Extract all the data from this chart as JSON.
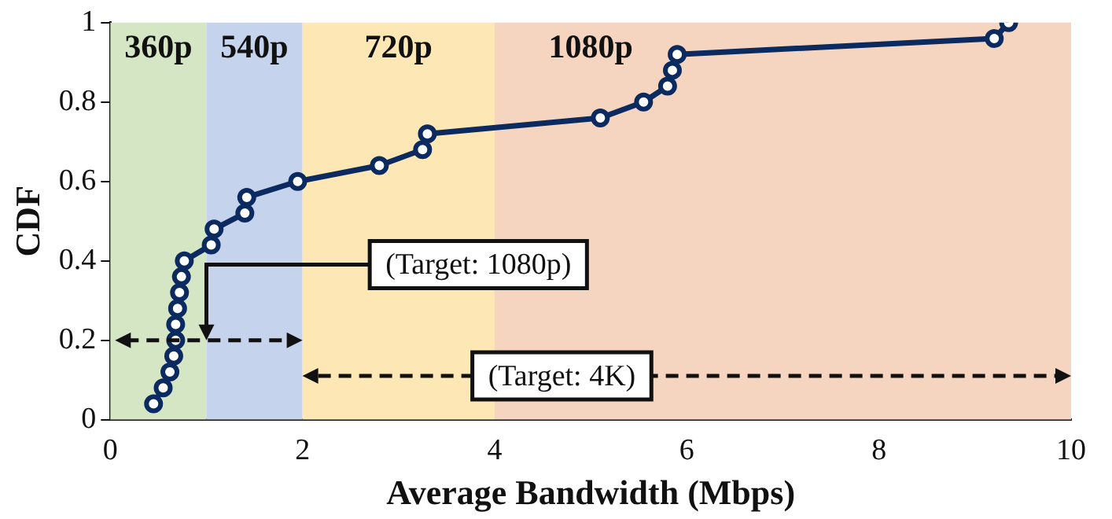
{
  "chart_data": {
    "type": "line",
    "xlabel": "Average Bandwidth (Mbps)",
    "ylabel": "CDF",
    "x": [
      0.45,
      0.55,
      0.62,
      0.66,
      0.68,
      0.68,
      0.7,
      0.72,
      0.74,
      0.77,
      1.05,
      1.08,
      1.4,
      1.42,
      1.95,
      2.8,
      3.25,
      3.3,
      5.1,
      5.55,
      5.8,
      5.85,
      5.9,
      9.2,
      9.35
    ],
    "series": [
      {
        "color": "#0b2a60",
        "values": [
          0.04,
          0.08,
          0.12,
          0.16,
          0.2,
          0.24,
          0.28,
          0.32,
          0.36,
          0.4,
          0.44,
          0.48,
          0.52,
          0.56,
          0.6,
          0.64,
          0.68,
          0.72,
          0.76,
          0.8,
          0.84,
          0.88,
          0.92,
          0.96,
          1.0
        ]
      }
    ],
    "xlim": [
      0,
      10
    ],
    "xticks": [
      0,
      2,
      4,
      6,
      8,
      10
    ],
    "ylim": [
      0,
      1
    ],
    "yticks": [
      0,
      0.2,
      0.4,
      0.6,
      0.8,
      1
    ],
    "bands": [
      {
        "axis": "x",
        "from": 0,
        "to": 1,
        "label": "360p",
        "color": "#d5e6c5"
      },
      {
        "axis": "x",
        "from": 1,
        "to": 2,
        "label": "540p",
        "color": "#c5d3ec"
      },
      {
        "axis": "x",
        "from": 2,
        "to": 4,
        "label": "720p",
        "color": "#fde7b5"
      },
      {
        "axis": "x",
        "from": 4,
        "to": 10,
        "label": "1080p",
        "color": "#f6d5c0"
      }
    ],
    "annotations": [
      "(Target: 1080p)",
      "(Target: 4K)"
    ],
    "marker": "circle",
    "line_style": "solid",
    "grid": false,
    "legend": false
  }
}
